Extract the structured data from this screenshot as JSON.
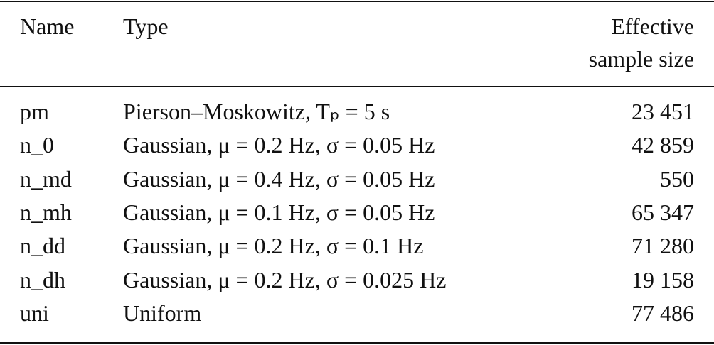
{
  "table": {
    "header": [
      "Name",
      "Type",
      "Effective sample size"
    ],
    "rows": [
      [
        "pm",
        "Pierson–Moskowitz, Tₚ = 5 s",
        "23 451"
      ],
      [
        "n_0",
        "Gaussian, μ = 0.2 Hz, σ = 0.05 Hz",
        "42 859"
      ],
      [
        "n_md",
        "Gaussian, μ = 0.4 Hz, σ = 0.05 Hz",
        "550"
      ],
      [
        "n_mh",
        "Gaussian, μ = 0.1 Hz, σ = 0.05 Hz",
        "65 347"
      ],
      [
        "n_dd",
        "Gaussian, μ = 0.2 Hz, σ = 0.1 Hz",
        "71 280"
      ],
      [
        "n_dh",
        "Gaussian, μ = 0.2 Hz, σ = 0.025 Hz",
        "19 158"
      ],
      [
        "uni",
        "Uniform",
        "77 486"
      ]
    ]
  }
}
